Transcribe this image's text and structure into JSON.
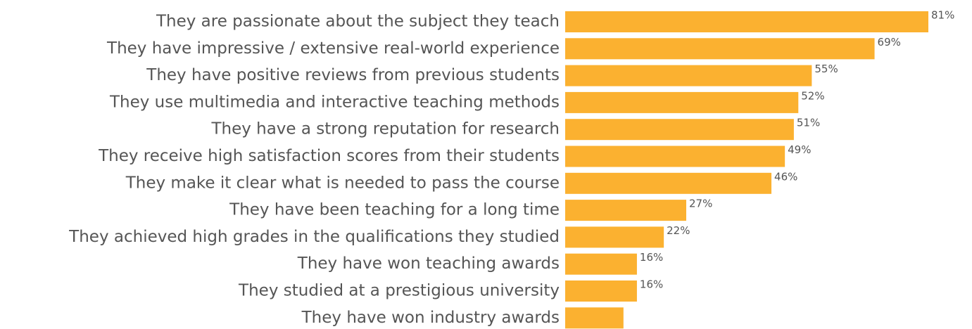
{
  "chart_data": {
    "type": "bar",
    "orientation": "horizontal",
    "categories": [
      "They are passionate about the subject they teach",
      "They have impressive / extensive real-world experience",
      "They have positive reviews from previous students",
      "They use multimedia and interactive teaching methods",
      "They have a strong reputation for research",
      "They receive high satisfaction scores from their students",
      "They make it clear what is needed to pass the course",
      "They have been teaching for a long time",
      "They achieved high grades in the qualifications they studied",
      "They have won teaching awards",
      "They studied at a prestigious university",
      "They have won industry awards"
    ],
    "values": [
      81,
      69,
      55,
      52,
      51,
      49,
      46,
      27,
      22,
      16,
      16,
      13
    ],
    "value_labels": [
      "81%",
      "69%",
      "55%",
      "52%",
      "51%",
      "49%",
      "46%",
      "27%",
      "22%",
      "16%",
      "16%",
      null
    ],
    "color": "#fbb130"
  }
}
